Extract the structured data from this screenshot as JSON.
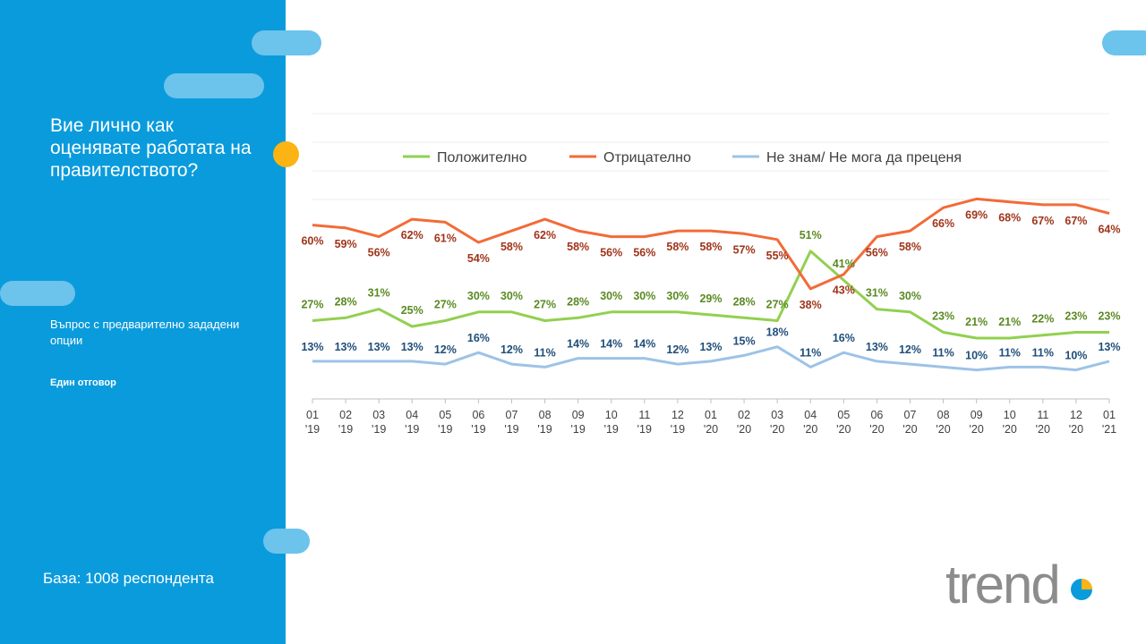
{
  "sidebar": {
    "title": "Вие лично как оценявате работата на правителството?",
    "subtitle": "Въпрос с предварително зададени опции",
    "note": "Един отговор",
    "base": "База: 1008 респондента"
  },
  "logo": {
    "text": "trend"
  },
  "colors": {
    "panel": "#0a9bdc",
    "accent_dot": "#fbb413",
    "positive": "#92d050",
    "negative": "#f26b38",
    "dontknow": "#9dc3e6",
    "positive_label": "#5a8a22",
    "negative_label": "#a0341a",
    "dontknow_label": "#1f4e79"
  },
  "chart_data": {
    "type": "line",
    "x": [
      "01 '19",
      "02 '19",
      "03 '19",
      "04 '19",
      "05 '19",
      "06 '19",
      "07 '19",
      "08 '19",
      "09 '19",
      "10 '19",
      "11 '19",
      "12 '19",
      "01 '20",
      "02 '20",
      "03 '20",
      "04 '20",
      "05 '20",
      "06 '20",
      "07 '20",
      "08 '20",
      "09 '20",
      "10 '20",
      "11 '20",
      "12 '20",
      "01 '21"
    ],
    "x_ticks": [
      [
        "01",
        "'19"
      ],
      [
        "02",
        "'19"
      ],
      [
        "03",
        "'19"
      ],
      [
        "04",
        "'19"
      ],
      [
        "05",
        "'19"
      ],
      [
        "06",
        "'19"
      ],
      [
        "07",
        "'19"
      ],
      [
        "08",
        "'19"
      ],
      [
        "09",
        "'19"
      ],
      [
        "10",
        "'19"
      ],
      [
        "11",
        "'19"
      ],
      [
        "12",
        "'19"
      ],
      [
        "01",
        "'20"
      ],
      [
        "02",
        "'20"
      ],
      [
        "03",
        "'20"
      ],
      [
        "04",
        "'20"
      ],
      [
        "05",
        "'20"
      ],
      [
        "06",
        "'20"
      ],
      [
        "07",
        "'20"
      ],
      [
        "08",
        "'20"
      ],
      [
        "09",
        "'20"
      ],
      [
        "10",
        "'20"
      ],
      [
        "11",
        "'20"
      ],
      [
        "12",
        "'20"
      ],
      [
        "01",
        "'21"
      ]
    ],
    "series": [
      {
        "name": "Положително",
        "color": "#92d050",
        "label_color": "#5a8a22",
        "values": [
          27,
          28,
          31,
          25,
          27,
          30,
          30,
          27,
          28,
          30,
          30,
          30,
          29,
          28,
          27,
          51,
          41,
          31,
          30,
          23,
          21,
          21,
          22,
          23,
          23
        ]
      },
      {
        "name": "Отрицателно",
        "color": "#f26b38",
        "label_color": "#a0341a",
        "values": [
          60,
          59,
          56,
          62,
          61,
          54,
          58,
          62,
          58,
          56,
          56,
          58,
          58,
          57,
          55,
          38,
          43,
          56,
          58,
          66,
          69,
          68,
          67,
          67,
          64
        ]
      },
      {
        "name": "Не знам/ Не мога да преценя",
        "color": "#9dc3e6",
        "label_color": "#1f4e79",
        "values": [
          13,
          13,
          13,
          13,
          12,
          16,
          12,
          11,
          14,
          14,
          14,
          12,
          13,
          15,
          18,
          11,
          16,
          13,
          12,
          11,
          10,
          11,
          11,
          10,
          13
        ]
      }
    ],
    "value_suffix": "%",
    "ylim": [
      0,
      100
    ],
    "grid": true,
    "legend": "top"
  }
}
